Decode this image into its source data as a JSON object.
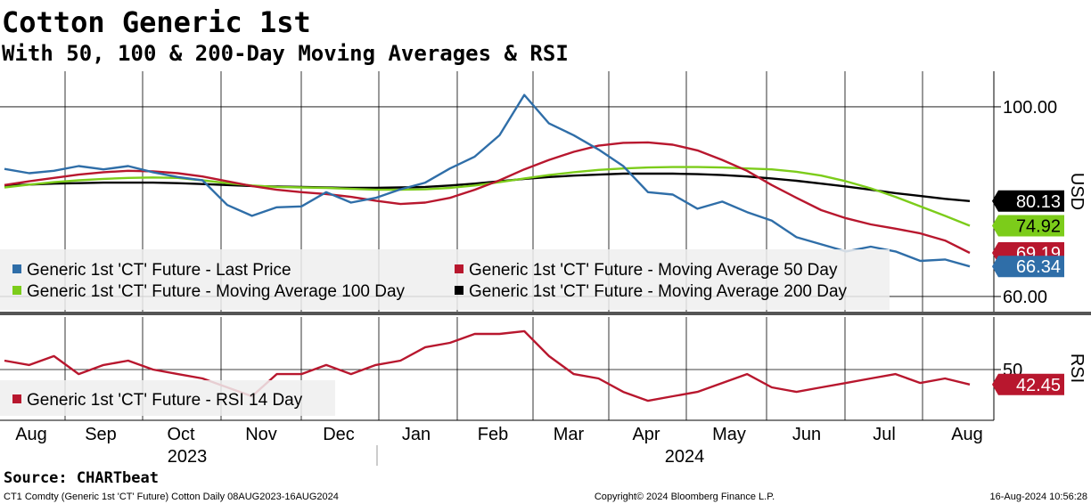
{
  "chart_data": [
    {
      "type": "line",
      "title": "Cotton Generic 1st",
      "subtitle": "With 50, 100 & 200-Day Moving Averages & RSI",
      "y_label": "USD",
      "ylim": [
        56.8,
        107.5
      ],
      "yticks": [
        {
          "value": 60,
          "label": "60.00"
        },
        {
          "value": 100,
          "label": "100.00"
        }
      ],
      "grid": true,
      "series": [
        {
          "name": "Generic 1st 'CT' Future - Last Price",
          "color": "#2f6ea8",
          "values": [
            86.9,
            86.0,
            86.5,
            87.5,
            86.8,
            87.5,
            86.2,
            85.2,
            84.5,
            79.3,
            77.0,
            78.8,
            79.0,
            82.0,
            79.8,
            80.8,
            82.6,
            84.0,
            87.0,
            89.5,
            94.0,
            102.5,
            96.5,
            94.0,
            91.0,
            87.5,
            82.0,
            81.5,
            78.5,
            80.0,
            77.8,
            76.0,
            72.5,
            71.0,
            69.5,
            70.5,
            69.5,
            67.5,
            67.8,
            66.34
          ]
        },
        {
          "name": "Generic 1st 'CT' Future - Moving Average 50 Day",
          "color": "#b8172e",
          "values": [
            83.5,
            84.3,
            85.0,
            85.7,
            86.2,
            86.5,
            86.4,
            86.0,
            85.3,
            84.3,
            83.3,
            82.5,
            82.0,
            81.6,
            81.0,
            80.2,
            79.5,
            79.8,
            80.8,
            82.5,
            84.5,
            86.8,
            88.8,
            90.5,
            91.8,
            92.4,
            92.5,
            92.0,
            90.8,
            88.8,
            86.5,
            83.5,
            80.8,
            78.2,
            76.5,
            75.2,
            74.3,
            73.3,
            71.8,
            69.19
          ]
        },
        {
          "name": "Generic 1st 'CT' Future - Moving Average 100 Day",
          "color": "#7ccc1a",
          "values": [
            83.0,
            83.6,
            84.1,
            84.5,
            84.8,
            85.0,
            85.1,
            85.0,
            84.5,
            83.9,
            83.4,
            83.1,
            83.0,
            82.9,
            82.7,
            82.5,
            82.5,
            82.6,
            82.9,
            83.4,
            84.1,
            84.9,
            85.6,
            86.2,
            86.7,
            87.0,
            87.2,
            87.3,
            87.3,
            87.2,
            87.0,
            86.8,
            86.3,
            85.5,
            84.3,
            82.8,
            81.0,
            79.0,
            77.0,
            74.92
          ]
        },
        {
          "name": "Generic 1st 'CT' Future - Moving Average 200 Day",
          "color": "#000000",
          "values": [
            83.4,
            83.6,
            83.8,
            83.9,
            84.0,
            84.0,
            84.0,
            83.9,
            83.7,
            83.5,
            83.3,
            83.2,
            83.1,
            83.0,
            82.9,
            82.9,
            83.0,
            83.1,
            83.4,
            83.8,
            84.3,
            84.8,
            85.2,
            85.5,
            85.7,
            85.9,
            85.9,
            85.9,
            85.8,
            85.6,
            85.3,
            84.9,
            84.4,
            83.8,
            83.2,
            82.5,
            81.8,
            81.2,
            80.6,
            80.13
          ]
        }
      ]
    },
    {
      "type": "line",
      "y_label": "RSI",
      "ylim": [
        23,
        77
      ],
      "yticks": [
        50
      ],
      "grid": true,
      "x_tick_labels": [
        "Aug",
        "Sep",
        "Oct",
        "Nov",
        "Dec",
        "Jan",
        "Feb",
        "Mar",
        "Apr",
        "May",
        "Jun",
        "Jul",
        "Aug"
      ],
      "x_year_labels": [
        "2023",
        "2024"
      ],
      "series": [
        {
          "name": "Generic 1st 'CT' Future - RSI 14 Day",
          "color": "#b8172e",
          "values": [
            54.5,
            52.3,
            56.8,
            47.7,
            52.3,
            54.5,
            50.0,
            47.7,
            45.5,
            41.0,
            36.5,
            47.7,
            47.7,
            52.3,
            47.7,
            52.3,
            54.5,
            61.3,
            63.5,
            68.0,
            68.0,
            69.4,
            56.8,
            47.7,
            45.5,
            38.7,
            34.2,
            36.5,
            38.7,
            43.2,
            47.7,
            41.0,
            38.7,
            41.0,
            43.2,
            45.5,
            47.7,
            43.2,
            45.5,
            42.45
          ]
        }
      ]
    }
  ],
  "footer": {
    "source": "Source: CHARTbeat",
    "description": "CT1 Comdty (Generic 1st 'CT' Future) Cotton  Daily 08AUG2023-16AUG2024",
    "copyright": "Copyright© 2024 Bloomberg Finance L.P.",
    "timestamp": "16-Aug-2024 10:56:28"
  }
}
